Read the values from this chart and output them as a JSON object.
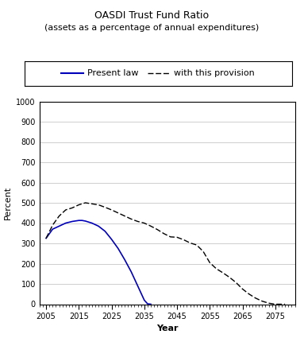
{
  "title_line1": "OASDI Trust Fund Ratio",
  "title_line2": "(assets as a percentage of annual expenditures)",
  "xlabel": "Year",
  "ylabel": "Percent",
  "xlim": [
    2003,
    2081
  ],
  "ylim": [
    0,
    1000
  ],
  "yticks": [
    0,
    100,
    200,
    300,
    400,
    500,
    600,
    700,
    800,
    900,
    1000
  ],
  "xticks": [
    2005,
    2015,
    2025,
    2035,
    2045,
    2055,
    2065,
    2075
  ],
  "present_law_x": [
    2005,
    2007,
    2009,
    2011,
    2013,
    2015,
    2016,
    2017,
    2019,
    2021,
    2023,
    2025,
    2027,
    2029,
    2031,
    2033,
    2035,
    2036,
    2037
  ],
  "present_law_y": [
    325,
    370,
    385,
    400,
    408,
    413,
    413,
    410,
    400,
    385,
    360,
    320,
    275,
    220,
    160,
    90,
    20,
    2,
    0
  ],
  "provision_x": [
    2005,
    2007,
    2009,
    2011,
    2013,
    2015,
    2017,
    2019,
    2021,
    2023,
    2025,
    2027,
    2029,
    2031,
    2033,
    2035,
    2037,
    2039,
    2041,
    2043,
    2045,
    2047,
    2049,
    2051,
    2053,
    2055,
    2057,
    2059,
    2061,
    2063,
    2065,
    2067,
    2069,
    2071,
    2073,
    2075,
    2077,
    2078
  ],
  "provision_y": [
    325,
    390,
    435,
    465,
    475,
    490,
    500,
    495,
    490,
    478,
    465,
    450,
    435,
    420,
    408,
    400,
    385,
    368,
    348,
    332,
    330,
    318,
    302,
    292,
    260,
    205,
    175,
    155,
    133,
    107,
    75,
    50,
    30,
    15,
    5,
    0,
    0,
    0
  ],
  "present_law_color": "#0000bb",
  "provision_color": "#000000",
  "legend_label_1": "Present law",
  "legend_label_2": "with this provision",
  "background_color": "#ffffff",
  "grid_color": "#bbbbbb",
  "title_fontsize": 9,
  "subtitle_fontsize": 8,
  "axis_label_fontsize": 8,
  "tick_fontsize": 7,
  "legend_fontsize": 8
}
